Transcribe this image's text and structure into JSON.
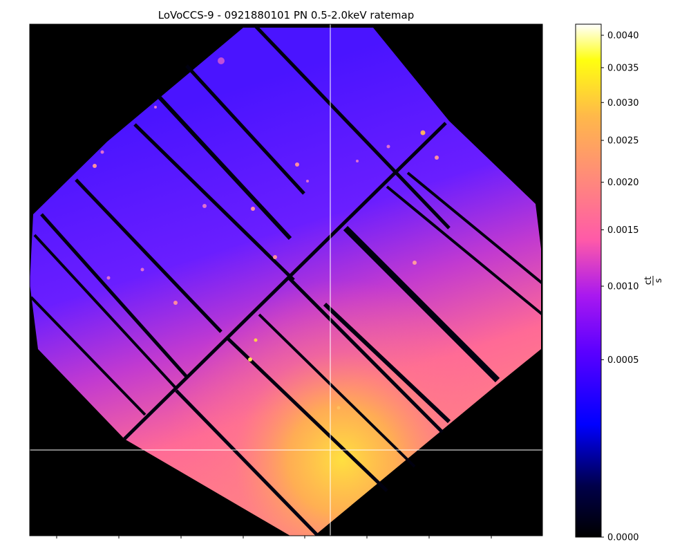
{
  "figure": {
    "title": "LoVoCCS-9 - 0921880101 PN 0.5-2.0keV ratemap"
  },
  "image_panel": {
    "content": "X-ray count-rate image of a galaxy cluster, diamond-shaped detector footprint with dark chip gaps, bright emission toward lower-centre",
    "crosshair": true
  },
  "colorbar": {
    "colormap": "gnuplot2",
    "scale": "power-law",
    "label_numerator": "ct",
    "label_denominator": "s",
    "ticks": [
      {
        "value": 0.004,
        "label": "0.0040"
      },
      {
        "value": 0.0035,
        "label": "0.0035"
      },
      {
        "value": 0.003,
        "label": "0.0030"
      },
      {
        "value": 0.0025,
        "label": "0.0025"
      },
      {
        "value": 0.002,
        "label": "0.0020"
      },
      {
        "value": 0.0015,
        "label": "0.0015"
      },
      {
        "value": 0.001,
        "label": "0.0010"
      },
      {
        "value": 0.0005,
        "label": "0.0005"
      },
      {
        "value": 0.0,
        "label": "0.0000"
      }
    ]
  },
  "colors": {
    "background": "#000000",
    "crosshair": "#ffffff",
    "faint": "#4a14ff",
    "mid": "#ff6a9a",
    "bright": "#ffd23a"
  }
}
